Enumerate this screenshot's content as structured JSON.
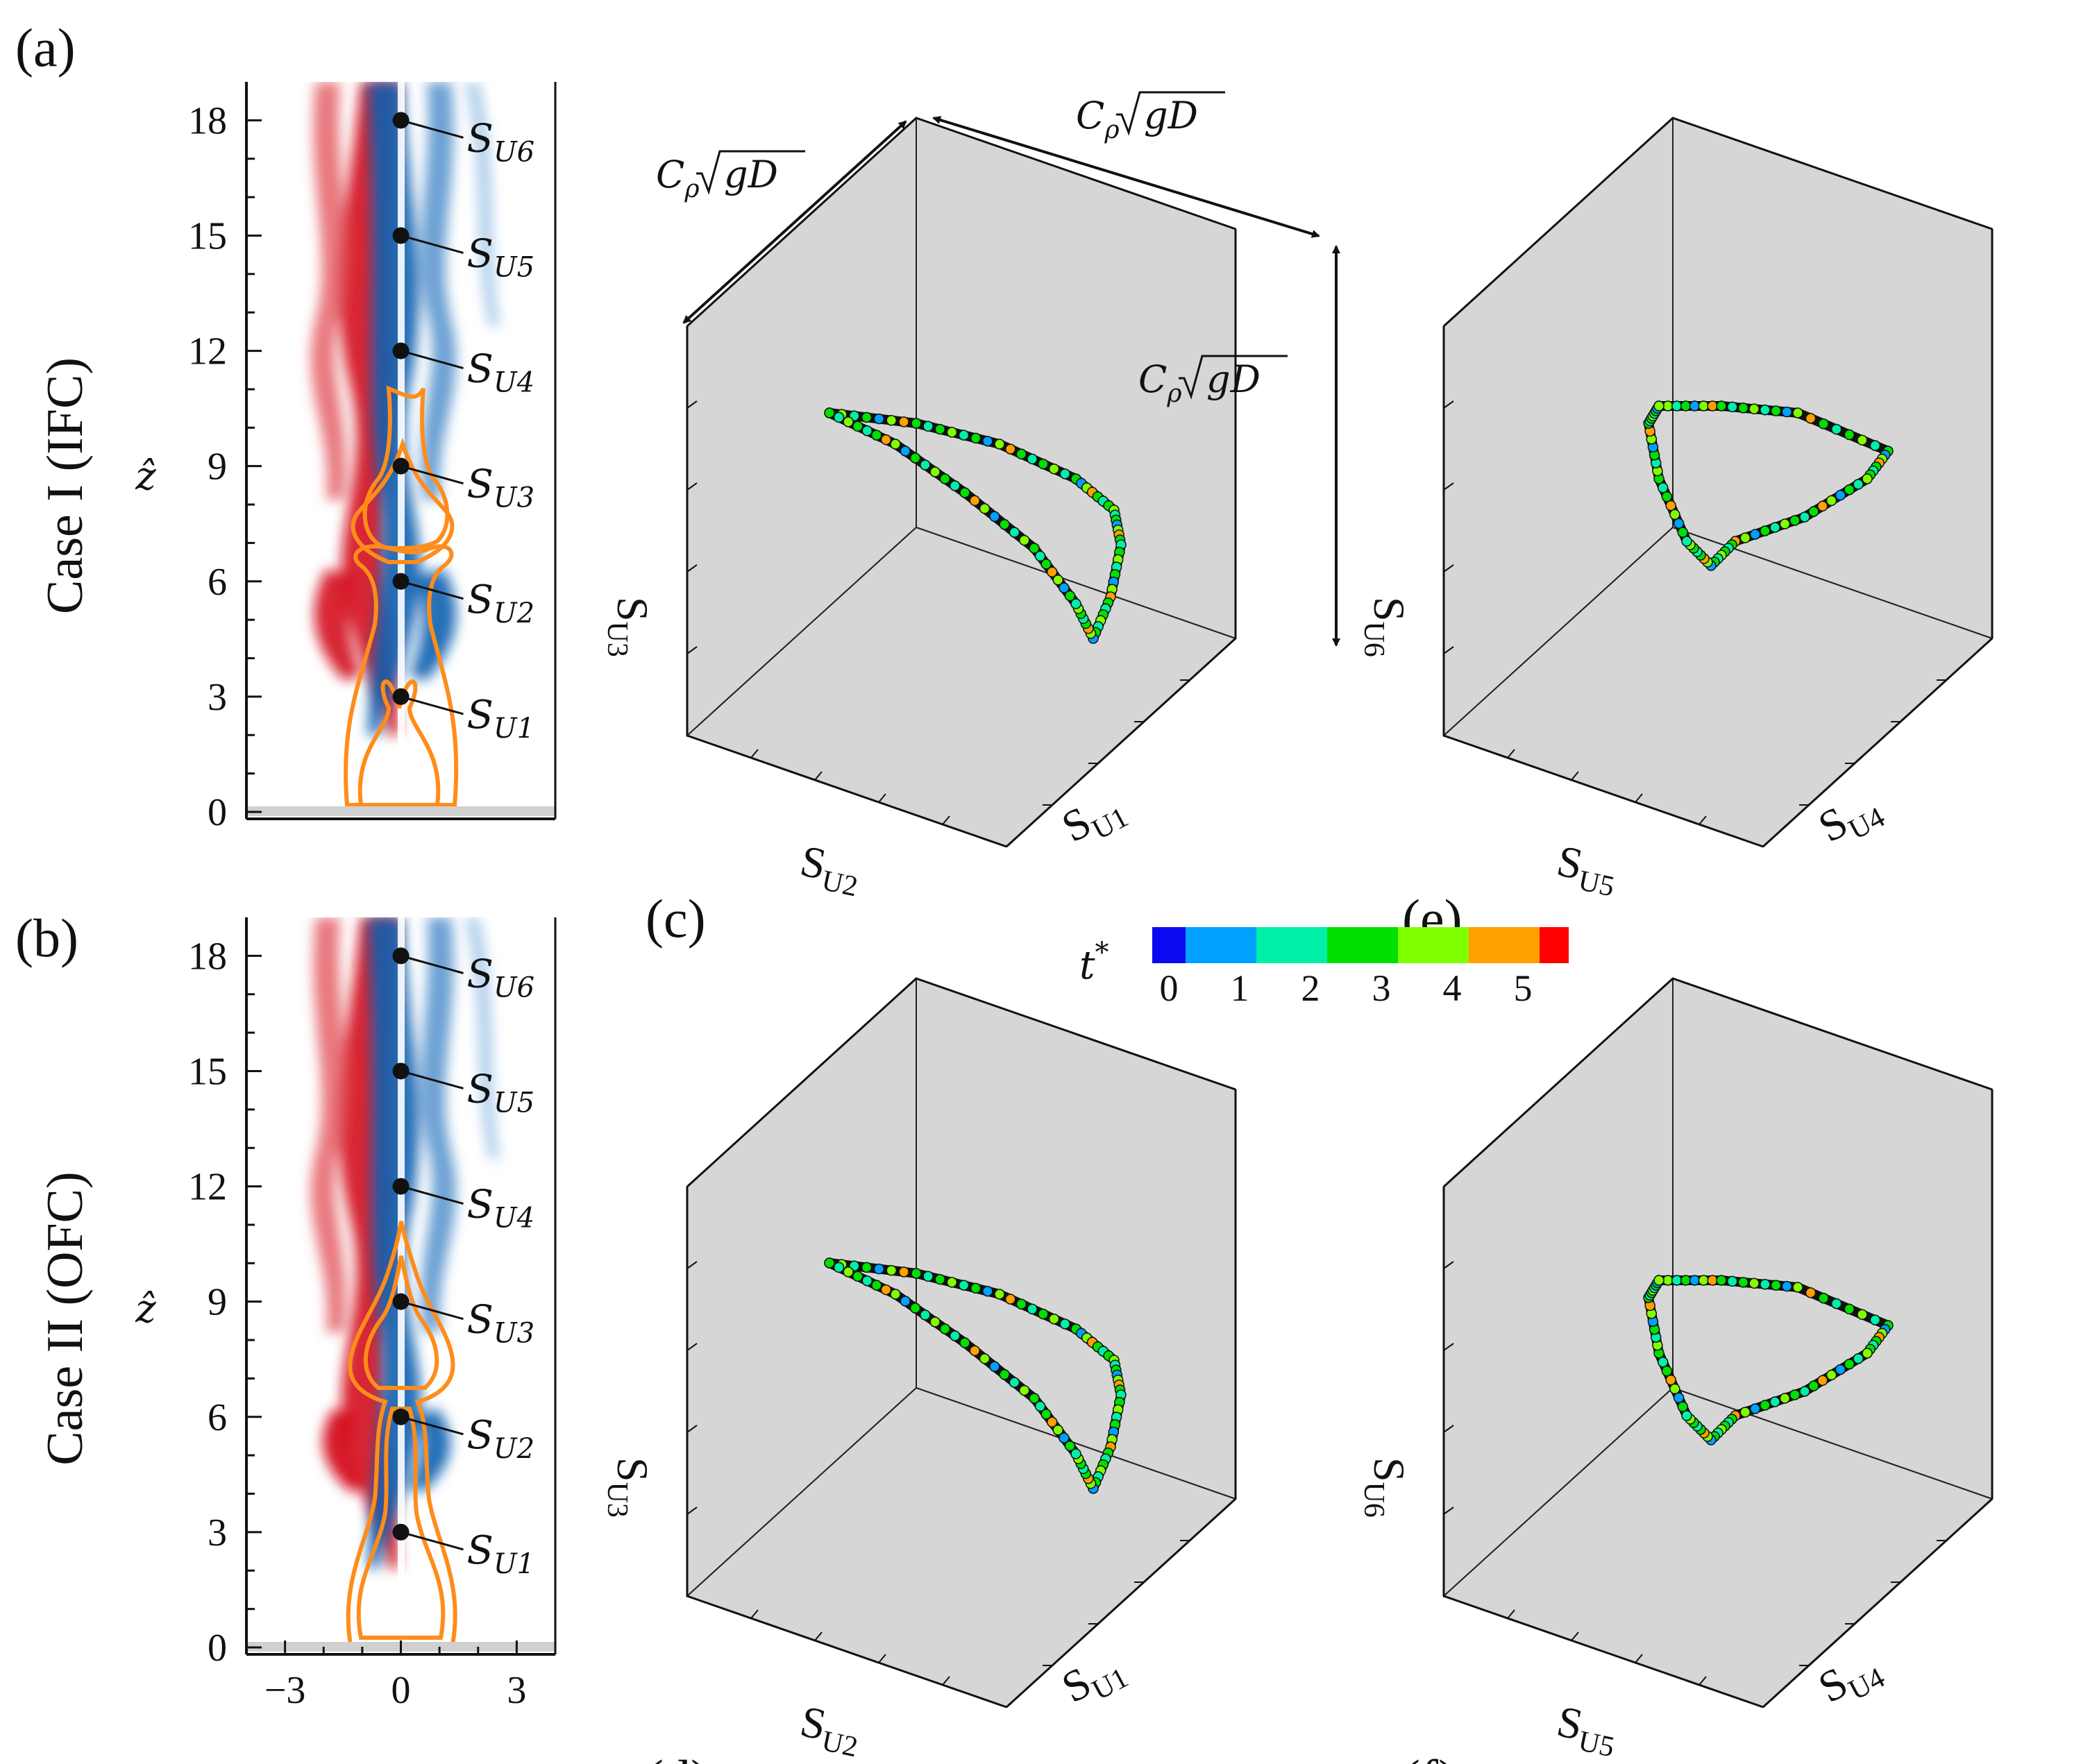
{
  "chart_data": [
    {
      "panel": "(a)",
      "type": "heatmap",
      "case_label": "Case I (IFC)",
      "ylabel": "ẑ",
      "y_ticks": [
        "0",
        "3",
        "6",
        "9",
        "12",
        "15",
        "18"
      ],
      "ylim": [
        0,
        19
      ],
      "xlim": [
        -4,
        4
      ],
      "sensors": [
        {
          "name": "S",
          "sub": "U1",
          "z": 3
        },
        {
          "name": "S",
          "sub": "U2",
          "z": 6
        },
        {
          "name": "S",
          "sub": "U3",
          "z": 9
        },
        {
          "name": "S",
          "sub": "U4",
          "z": 12
        },
        {
          "name": "S",
          "sub": "U5",
          "z": 15
        },
        {
          "name": "S",
          "sub": "U6",
          "z": 18
        }
      ]
    },
    {
      "panel": "(b)",
      "type": "heatmap",
      "case_label": "Case II (OFC)",
      "ylabel": "ẑ",
      "y_ticks": [
        "0",
        "3",
        "6",
        "9",
        "12",
        "15",
        "18"
      ],
      "x_ticks": [
        "−3",
        "0",
        "3"
      ],
      "ylim": [
        0,
        19
      ],
      "xlim": [
        -4,
        4
      ],
      "sensors": [
        {
          "name": "S",
          "sub": "U1",
          "z": 3
        },
        {
          "name": "S",
          "sub": "U2",
          "z": 6
        },
        {
          "name": "S",
          "sub": "U3",
          "z": 9
        },
        {
          "name": "S",
          "sub": "U4",
          "z": 12
        },
        {
          "name": "S",
          "sub": "U5",
          "z": 15
        },
        {
          "name": "S",
          "sub": "U6",
          "z": 18
        }
      ]
    },
    {
      "panel": "(c)",
      "type": "scatter",
      "axes": [
        {
          "name": "S",
          "sub": "U1"
        },
        {
          "name": "S",
          "sub": "U2"
        },
        {
          "name": "S",
          "sub": "U3"
        }
      ],
      "scale_labels": {
        "text": "Cρ√gD",
        "count": 3
      }
    },
    {
      "panel": "(d)",
      "type": "scatter",
      "axes": [
        {
          "name": "S",
          "sub": "U1"
        },
        {
          "name": "S",
          "sub": "U2"
        },
        {
          "name": "S",
          "sub": "U3"
        }
      ]
    },
    {
      "panel": "(e)",
      "type": "scatter",
      "axes": [
        {
          "name": "S",
          "sub": "U4"
        },
        {
          "name": "S",
          "sub": "U5"
        },
        {
          "name": "S",
          "sub": "U6"
        }
      ]
    },
    {
      "panel": "(f)",
      "type": "scatter",
      "axes": [
        {
          "name": "S",
          "sub": "U4"
        },
        {
          "name": "S",
          "sub": "U5"
        },
        {
          "name": "S",
          "sub": "U6"
        }
      ]
    }
  ],
  "colorbar": {
    "label": "t*",
    "ticks": [
      "0",
      "1",
      "2",
      "3",
      "4",
      "5"
    ],
    "colors": [
      "#0a0af0",
      "#00a0ff",
      "#00f0a8",
      "#00e000",
      "#80ff00",
      "#ffa000",
      "#ff0000"
    ]
  },
  "colors": {
    "red": "#d4101e",
    "blue": "#0a5fb0",
    "orange": "#ff8c1a",
    "box_gray": "#d6d6d6"
  },
  "scale_label": {
    "main": "C",
    "sub": "ρ",
    "root": "gD"
  }
}
